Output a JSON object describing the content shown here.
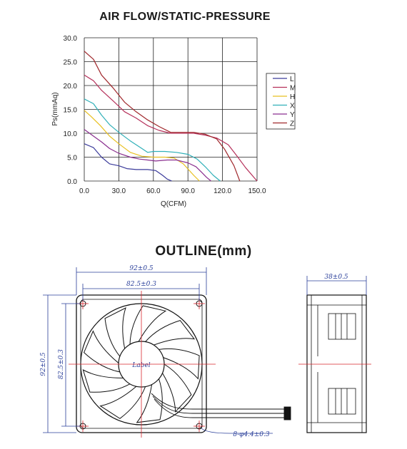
{
  "chart_title": "AIR FLOW/STATIC-PRESSURE",
  "outline_title": "OUTLINE(mm)",
  "chart_data": {
    "type": "line",
    "title": "AIR FLOW/STATIC-PRESSURE",
    "xlabel": "Q(CFM)",
    "ylabel": "Ps(mmAq)",
    "xlim": [
      0,
      150
    ],
    "ylim": [
      0,
      30
    ],
    "x_ticks": [
      "0.0",
      "30.0",
      "60.0",
      "90.0",
      "120.0",
      "150.0"
    ],
    "y_ticks": [
      "0.0",
      "5.0",
      "10.0",
      "15.0",
      "20.0",
      "25.0",
      "30.0"
    ],
    "grid": true,
    "legend": "right",
    "series": [
      {
        "name": "L",
        "color": "#3a3a9a",
        "x": [
          0,
          8,
          15,
          22,
          30,
          37,
          45,
          55,
          62,
          68,
          72,
          76
        ],
        "y": [
          7.8,
          7.0,
          5.0,
          3.6,
          3.2,
          2.6,
          2.4,
          2.4,
          2.2,
          1.2,
          0.4,
          0.0
        ]
      },
      {
        "name": "M",
        "color": "#b5305a",
        "x": [
          0,
          8,
          15,
          25,
          35,
          45,
          55,
          65,
          75,
          85,
          95,
          105,
          115,
          125,
          132,
          140,
          150
        ],
        "y": [
          22.2,
          21.0,
          19.0,
          16.8,
          14.5,
          13.2,
          11.6,
          10.6,
          10.0,
          10.0,
          10.0,
          9.6,
          9.0,
          7.6,
          5.4,
          2.8,
          0.0
        ]
      },
      {
        "name": "H",
        "color": "#e8c020",
        "x": [
          0,
          6,
          14,
          22,
          30,
          40,
          50,
          60,
          70,
          78,
          86,
          95,
          100
        ],
        "y": [
          14.8,
          13.5,
          11.6,
          9.4,
          7.8,
          6.0,
          5.2,
          5.0,
          5.0,
          4.8,
          3.6,
          1.2,
          0.0
        ]
      },
      {
        "name": "X",
        "color": "#30b0b8",
        "x": [
          0,
          8,
          15,
          22,
          30,
          40,
          50,
          55,
          60,
          70,
          80,
          90,
          98,
          105,
          112,
          118
        ],
        "y": [
          17.2,
          16.2,
          13.8,
          11.8,
          10.2,
          8.4,
          6.8,
          6.0,
          6.2,
          6.2,
          6.0,
          5.6,
          4.6,
          3.0,
          1.2,
          0.0
        ]
      },
      {
        "name": "Y",
        "color": "#8a2f8f",
        "x": [
          0,
          8,
          15,
          22,
          30,
          40,
          48,
          55,
          62,
          72,
          80,
          90,
          97,
          102,
          106,
          110
        ],
        "y": [
          10.8,
          9.4,
          8.2,
          6.8,
          5.8,
          5.0,
          4.6,
          4.4,
          4.2,
          4.4,
          4.4,
          3.8,
          3.0,
          1.8,
          0.8,
          0.0
        ]
      },
      {
        "name": "Z",
        "color": "#a0282c",
        "x": [
          0,
          8,
          15,
          25,
          35,
          45,
          55,
          65,
          75,
          85,
          95,
          105,
          115,
          122,
          130,
          135
        ],
        "y": [
          27.2,
          25.5,
          22.2,
          19.5,
          16.5,
          14.5,
          12.8,
          11.4,
          10.2,
          10.2,
          10.2,
          9.8,
          8.8,
          6.6,
          3.2,
          0.0
        ]
      }
    ]
  },
  "dimensions": {
    "front_width_outer": "92±0.5",
    "front_width_hole": "82.5±0.3",
    "front_height_outer": "92±0.5",
    "front_height_hole": "82.5±0.3",
    "side_depth": "38±0.5",
    "holes": "8-φ4.4±0.3",
    "hub_label": "Label"
  },
  "colors": {
    "dimension_line": "#2a3f9a",
    "center_line": "#d9272e",
    "grid": "#222222",
    "drawing": "#111111"
  }
}
